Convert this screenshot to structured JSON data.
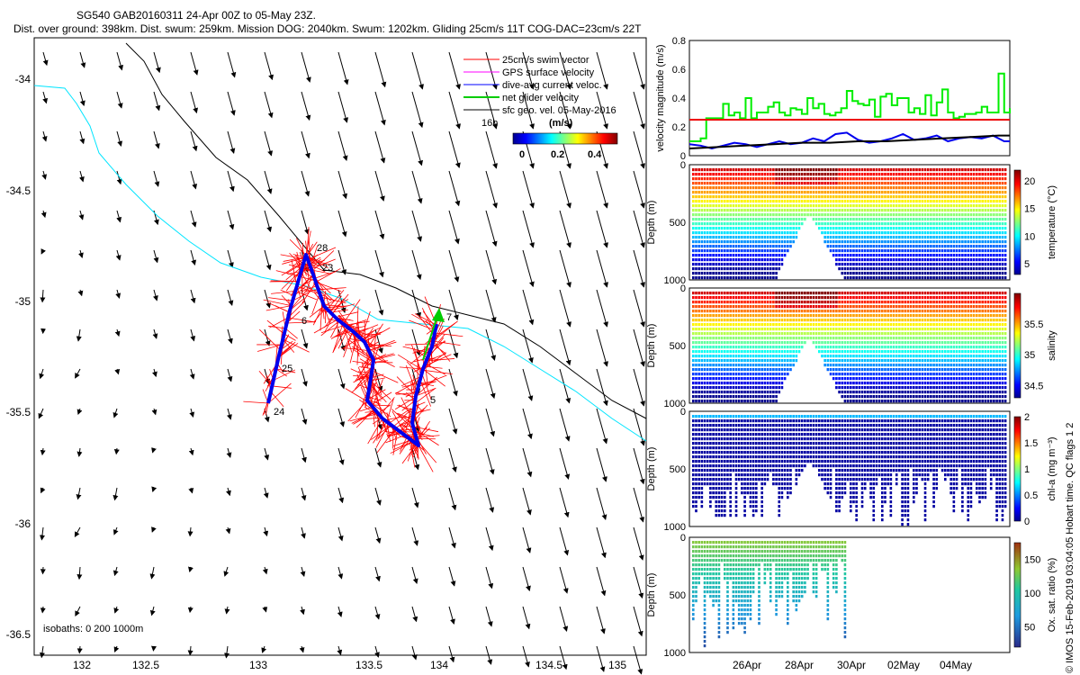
{
  "header": {
    "title_line1": "SG540 GAB20160311 24-Apr 00Z to 05-May 23Z.",
    "title_line2": "Dist. over ground: 398km. Dist. swum: 259km. Mission DOG: 2040km. Swum: 1202km. Gliding 25cm/s 11T COG-DAC=23cm/s 22T"
  },
  "map": {
    "x_ticks": [
      "132",
      "132.5",
      "133",
      "133.5",
      "134",
      "134.5",
      "135"
    ],
    "y_ticks": [
      "-34",
      "-34.5",
      "-35",
      "-35.5",
      "-36",
      "-36.5"
    ],
    "legend": {
      "items": [
        {
          "label": "25cm/s swim vector",
          "color": "#ff0000"
        },
        {
          "label": "GPS surface velocity",
          "color": "#ff00ff"
        },
        {
          "label": "dive-avg current veloc.",
          "color": "#0000ff"
        },
        {
          "label": "net glider velocity",
          "color": "#00cc00"
        },
        {
          "label": "sfc geo. vel. 05-May-2016",
          "color": "#000000"
        }
      ],
      "time_label": "16h",
      "colorbar_title": "(m/s)",
      "colorbar_ticks": [
        "0",
        "0.2",
        "0.4"
      ]
    },
    "isobaths_label": "isobaths: 0   200  1000m",
    "track_labels": [
      "28",
      "23",
      "6",
      "25",
      "24",
      "7",
      "5"
    ],
    "colors": {
      "coast": "#00e5ff",
      "isobath": "#000000",
      "track": "#0000ff",
      "swim": "#ff0000",
      "net": "#00cc00"
    }
  },
  "chart_data": [
    {
      "type": "line",
      "ylabel": "velocity magnitude (m/s)",
      "ylim": [
        0,
        0.8
      ],
      "y_ticks": [
        "0",
        "0.2",
        "0.4",
        "0.6",
        "0.8"
      ],
      "series": [
        {
          "color": "#00ee00",
          "points": [
            [
              0,
              0.1
            ],
            [
              2,
              0.12
            ],
            [
              3,
              0.26
            ],
            [
              5,
              0.26
            ],
            [
              6,
              0.36
            ],
            [
              7,
              0.28
            ],
            [
              8,
              0.3
            ],
            [
              9,
              0.26
            ],
            [
              10,
              0.4
            ],
            [
              11,
              0.26
            ],
            [
              12,
              0.3
            ],
            [
              13,
              0.3
            ],
            [
              14,
              0.34
            ],
            [
              15,
              0.37
            ],
            [
              16,
              0.3
            ],
            [
              17,
              0.28
            ],
            [
              18,
              0.33
            ],
            [
              19,
              0.32
            ],
            [
              20,
              0.29
            ],
            [
              21,
              0.4
            ],
            [
              22,
              0.33
            ],
            [
              23,
              0.36
            ],
            [
              24,
              0.29
            ],
            [
              25,
              0.28
            ],
            [
              26,
              0.3
            ],
            [
              27,
              0.33
            ],
            [
              28,
              0.45
            ],
            [
              29,
              0.38
            ],
            [
              30,
              0.36
            ],
            [
              31,
              0.35
            ],
            [
              32,
              0.39
            ],
            [
              33,
              0.27
            ],
            [
              34,
              0.41
            ],
            [
              35,
              0.43
            ],
            [
              36,
              0.35
            ],
            [
              37,
              0.4
            ],
            [
              38,
              0.4
            ],
            [
              39,
              0.3
            ],
            [
              40,
              0.33
            ],
            [
              41,
              0.29
            ],
            [
              42,
              0.42
            ],
            [
              43,
              0.28
            ],
            [
              44,
              0.37
            ],
            [
              45,
              0.46
            ],
            [
              46,
              0.3
            ],
            [
              47,
              0.26
            ],
            [
              48,
              0.27
            ],
            [
              49,
              0.29
            ],
            [
              50,
              0.29
            ],
            [
              51,
              0.3
            ],
            [
              52,
              0.34
            ],
            [
              53,
              0.3
            ],
            [
              54,
              0.3
            ],
            [
              55,
              0.57
            ],
            [
              56,
              0.3
            ],
            [
              57,
              0.33
            ]
          ]
        },
        {
          "color": "#0000ee",
          "points": [
            [
              0,
              0.08
            ],
            [
              2,
              0.07
            ],
            [
              4,
              0.05
            ],
            [
              6,
              0.07
            ],
            [
              8,
              0.09
            ],
            [
              10,
              0.08
            ],
            [
              12,
              0.06
            ],
            [
              14,
              0.08
            ],
            [
              16,
              0.1
            ],
            [
              18,
              0.08
            ],
            [
              20,
              0.09
            ],
            [
              22,
              0.12
            ],
            [
              24,
              0.1
            ],
            [
              26,
              0.15
            ],
            [
              28,
              0.16
            ],
            [
              30,
              0.11
            ],
            [
              32,
              0.09
            ],
            [
              34,
              0.1
            ],
            [
              36,
              0.12
            ],
            [
              38,
              0.15
            ],
            [
              40,
              0.11
            ],
            [
              42,
              0.12
            ],
            [
              44,
              0.14
            ],
            [
              46,
              0.1
            ],
            [
              48,
              0.12
            ],
            [
              50,
              0.13
            ],
            [
              52,
              0.12
            ],
            [
              54,
              0.14
            ],
            [
              56,
              0.1
            ],
            [
              57,
              0.1
            ]
          ]
        },
        {
          "color": "#000000",
          "points": [
            [
              0,
              0.05
            ],
            [
              5,
              0.06
            ],
            [
              10,
              0.07
            ],
            [
              15,
              0.08
            ],
            [
              20,
              0.09
            ],
            [
              25,
              0.09
            ],
            [
              30,
              0.1
            ],
            [
              35,
              0.1
            ],
            [
              40,
              0.11
            ],
            [
              45,
              0.12
            ],
            [
              50,
              0.13
            ],
            [
              55,
              0.14
            ],
            [
              57,
              0.14
            ]
          ]
        },
        {
          "color": "#ee0000",
          "points": [
            [
              0,
              0.25
            ],
            [
              57,
              0.25
            ]
          ]
        }
      ]
    },
    {
      "type": "scatter",
      "ylabel": "Depth (m)",
      "y_ticks": [
        "0",
        "500",
        "1000"
      ],
      "cbar_label": "temperature (°C)",
      "cbar_ticks": [
        "20",
        "15",
        "10",
        "5"
      ],
      "cbar_range": [
        3,
        22
      ]
    },
    {
      "type": "scatter",
      "ylabel": "Depth (m)",
      "y_ticks": [
        "0",
        "500",
        "1000"
      ],
      "cbar_label": "salinity",
      "cbar_ticks": [
        "35.5",
        "35",
        "34.5"
      ],
      "cbar_range": [
        34.3,
        36
      ]
    },
    {
      "type": "scatter",
      "ylabel": "Depth (m)",
      "y_ticks": [
        "0",
        "500",
        "1000"
      ],
      "cbar_label": "chl-a (mg m⁻³)",
      "cbar_ticks": [
        "2",
        "1.5",
        "1",
        "0.5",
        "0"
      ],
      "cbar_range": [
        0,
        2
      ]
    },
    {
      "type": "scatter",
      "ylabel": "Depth (m)",
      "y_ticks": [
        "0",
        "500",
        "1000"
      ],
      "cbar_label": "Ox. sat. ratio (%)",
      "cbar_ticks": [
        "150",
        "100",
        "50"
      ],
      "cbar_range": [
        20,
        175
      ],
      "x_ticks": [
        "26Apr",
        "28Apr",
        "30Apr",
        "02May",
        "04May"
      ]
    }
  ],
  "footer": {
    "side_note": "© IMOS 15-Feb-2019 03:04:05 Hobart time. QC flags 1  2"
  }
}
